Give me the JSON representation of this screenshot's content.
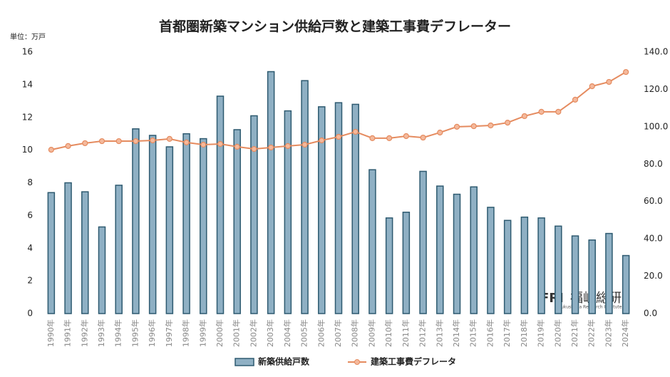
{
  "chart_data": {
    "type": "bar_line",
    "title": "首都圏新築マンション供給戸数と建築工事費デフレーター",
    "y_unit_label": "単位：万戸",
    "categories": [
      "1990年",
      "1991年",
      "1992年",
      "1993年",
      "1994年",
      "1995年",
      "1996年",
      "1997年",
      "1998年",
      "1999年",
      "2000年",
      "2001年",
      "2002年",
      "2003年",
      "2004年",
      "2005年",
      "2006年",
      "2007年",
      "2008年",
      "2009年",
      "2010年",
      "2011年",
      "2012年",
      "2013年",
      "2014年",
      "2015年",
      "2016年",
      "2017年",
      "2018年",
      "2019年",
      "2020年",
      "2021年",
      "2022年",
      "2023年",
      "2024年"
    ],
    "series": [
      {
        "name": "新築供給戸数",
        "type": "bar",
        "color": "#8fb0c4",
        "edge_color": "#2e5a70",
        "values": [
          7.4,
          8.0,
          7.45,
          5.3,
          7.85,
          11.3,
          10.9,
          10.2,
          11.0,
          10.7,
          13.3,
          11.25,
          12.1,
          14.8,
          12.4,
          14.25,
          12.65,
          12.9,
          12.8,
          8.8,
          5.85,
          6.2,
          8.7,
          7.8,
          7.3,
          7.75,
          6.5,
          5.7,
          5.9,
          5.85,
          5.35,
          4.75,
          4.5,
          4.9,
          3.55
        ]
      },
      {
        "name": "建築工事費デフレータ",
        "type": "line",
        "axis": "y2",
        "color": "#e58b5f",
        "marker_color": "#f4b99c",
        "values": [
          87.7,
          89.7,
          91.2,
          92.3,
          92.3,
          92.3,
          92.7,
          93.5,
          91.6,
          90.4,
          90.8,
          89.3,
          88.1,
          88.9,
          89.7,
          90.4,
          92.7,
          94.6,
          97.3,
          93.9,
          93.9,
          95.0,
          94.2,
          96.9,
          100.0,
          100.3,
          100.7,
          102.2,
          105.7,
          108.0,
          108.0,
          114.5,
          121.7,
          124.0,
          129.3
        ]
      }
    ],
    "ylim": [
      0,
      16
    ],
    "yticks": [
      0,
      2,
      4,
      6,
      8,
      10,
      12,
      14,
      16
    ],
    "y2lim": [
      0,
      140
    ],
    "y2ticks": [
      {
        "value": 0,
        "label": "0.0"
      },
      {
        "value": 20,
        "label": "20.0"
      },
      {
        "value": 40,
        "label": "40.0"
      },
      {
        "value": 60,
        "label": "60.0"
      },
      {
        "value": 80,
        "label": "80.0"
      },
      {
        "value": 100,
        "label": "100.0"
      },
      {
        "value": 120,
        "label": "120.0"
      },
      {
        "value": 140,
        "label": "140.0"
      }
    ],
    "grid": false,
    "legend": "bottom",
    "logo": {
      "mark": "FRI",
      "name": "福嶋総研",
      "sub": "Fukushima Research Institute"
    }
  }
}
